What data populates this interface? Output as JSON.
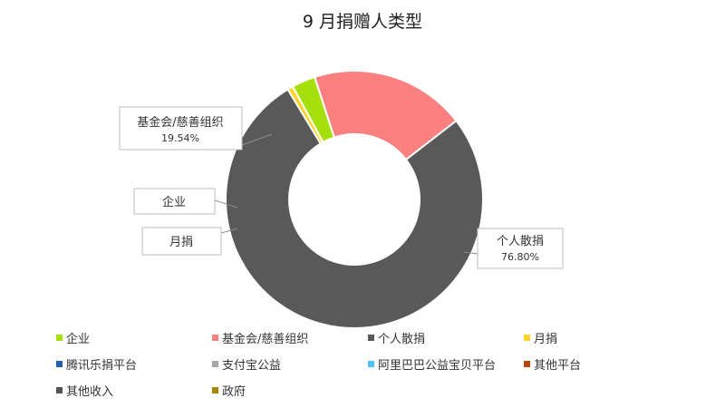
{
  "chart_data": {
    "type": "pie",
    "title": "9 月捐赠人类型",
    "categories": [
      "企业",
      "基金会/慈善组织",
      "个人散捐",
      "月捐",
      "腾讯乐捐平台",
      "支付宝公益",
      "阿里巴巴公益宝贝平台",
      "其他平台",
      "其他收入",
      "政府"
    ],
    "values": [
      2.95,
      19.54,
      76.8,
      0.71,
      0,
      0,
      0,
      0,
      0,
      0
    ],
    "colors": [
      "#a6e00c",
      "#fa7f7f",
      "#595959",
      "#ffd42a",
      "#1f5fb4",
      "#a6a6a6",
      "#4fc3f7",
      "#b5470f",
      "#545454",
      "#a88700"
    ],
    "labels": [
      {
        "category": "企业",
        "text": "企业"
      },
      {
        "category": "基金会/慈善组织",
        "text": "基金会/慈善组织",
        "value_text": "19.54%"
      },
      {
        "category": "个人散捐",
        "text": "个人散捐",
        "value_text": "76.80%"
      },
      {
        "category": "月捐",
        "text": "月捐"
      }
    ],
    "donut": true,
    "legend_position": "bottom"
  }
}
